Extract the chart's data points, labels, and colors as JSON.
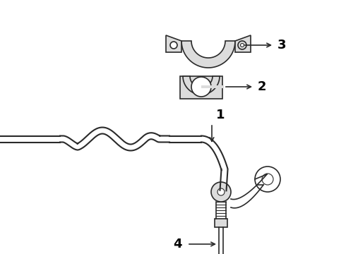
{
  "background_color": "#ffffff",
  "line_color": "#2a2a2a",
  "label_color": "#000000",
  "fig_width": 4.9,
  "fig_height": 3.6,
  "dpi": 100
}
